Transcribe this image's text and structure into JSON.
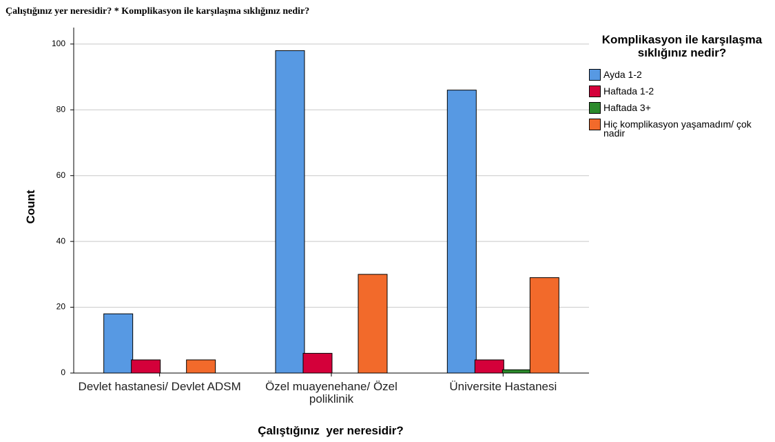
{
  "chart_data": {
    "type": "bar",
    "title": "Çalıştığınız yer neresidir? * Komplikasyon ile karşılaşma sıklığınız nedir?",
    "x_label": "Çalıştığınız  yer neresidir?",
    "y_label": "Count",
    "legend_title": "Komplikasyon ile karşılaşma sıklığınız nedir?",
    "categories": [
      "Devlet hastanesi/ Devlet ADSM",
      "Özel muayenehane/ Özel poliklinik",
      "Üniversite Hastanesi"
    ],
    "series": [
      {
        "name": "Ayda 1-2",
        "color": "#5799e3",
        "values": [
          18,
          98,
          86
        ]
      },
      {
        "name": "Haftada 1-2",
        "color": "#d4003a",
        "values": [
          4,
          6,
          4
        ]
      },
      {
        "name": "Haftada 3+",
        "color": "#2b8a2b",
        "values": [
          0,
          0,
          1
        ]
      },
      {
        "name": "Hiç komplikasyon yaşamadım/ çok nadir",
        "color": "#f26a2b",
        "values": [
          4,
          30,
          29
        ]
      }
    ],
    "ylim": [
      0,
      105
    ],
    "yticks": [
      0,
      20,
      40,
      60,
      80,
      100
    ],
    "grid": true,
    "legend": "right"
  }
}
